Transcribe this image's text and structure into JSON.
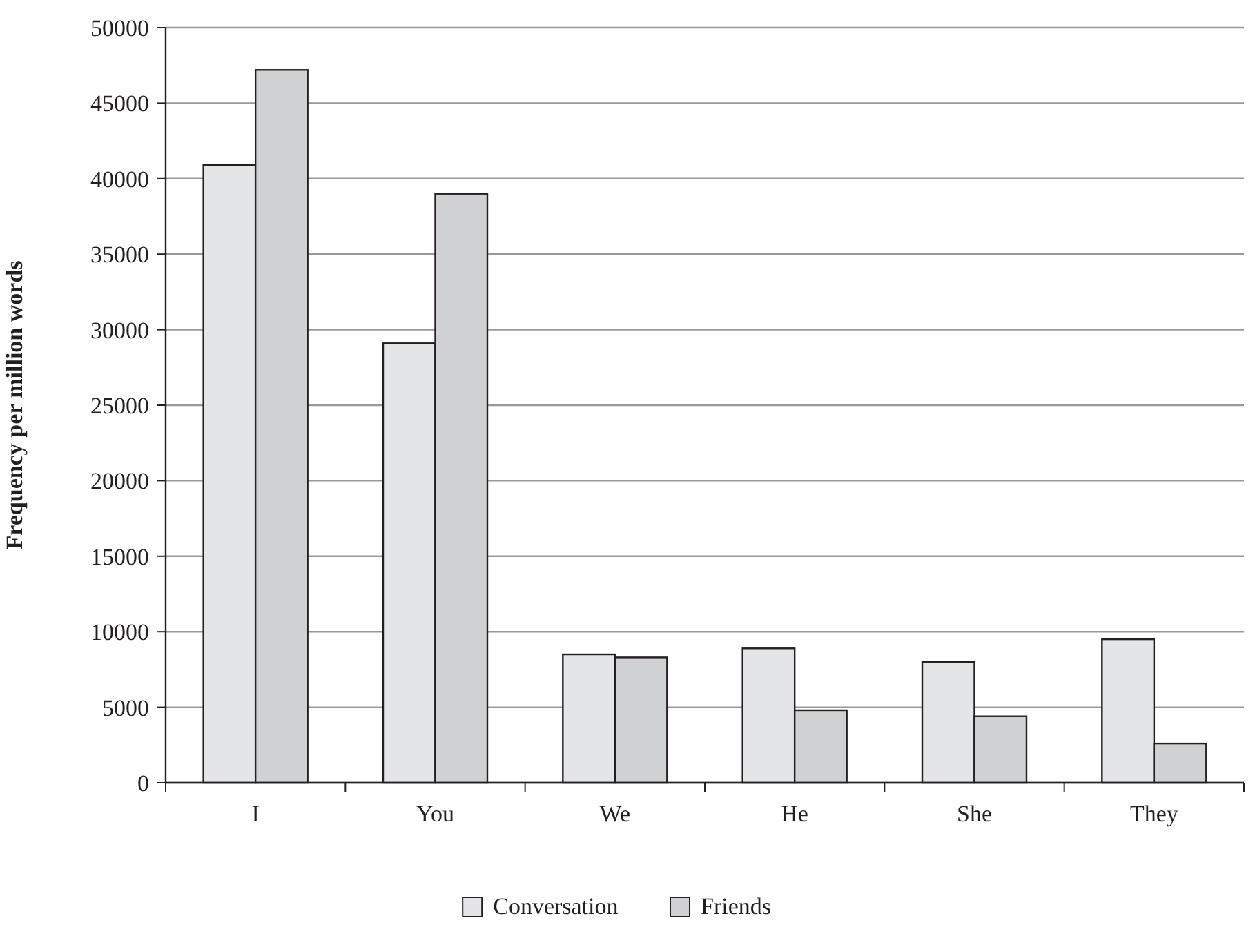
{
  "chart_data": {
    "type": "bar",
    "ylabel": "Frequency per million words",
    "categories": [
      "I",
      "You",
      "We",
      "He",
      "She",
      "They"
    ],
    "series": [
      {
        "name": "Conversation",
        "color": "#e4e5e7",
        "values": [
          40900,
          29100,
          8500,
          8900,
          8000,
          9500
        ]
      },
      {
        "name": "Friends",
        "color": "#d0d1d3",
        "values": [
          47200,
          39000,
          8300,
          4800,
          4400,
          2600
        ]
      }
    ],
    "ylim": [
      0,
      50000
    ],
    "yticks": [
      0,
      5000,
      10000,
      15000,
      20000,
      25000,
      30000,
      35000,
      40000,
      45000,
      50000
    ],
    "grid": "y",
    "legend": "bottom"
  }
}
